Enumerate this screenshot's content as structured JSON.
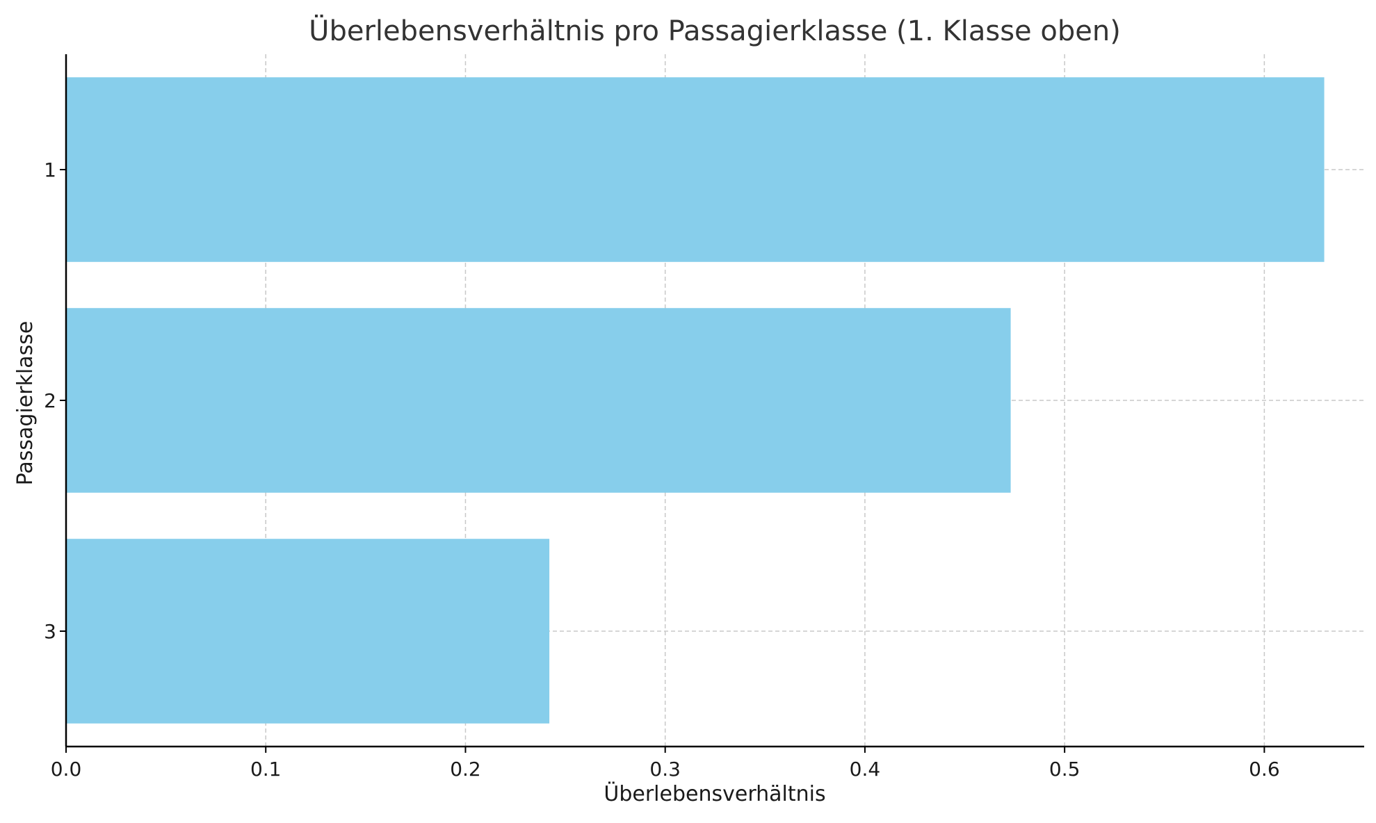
{
  "chart_data": {
    "type": "bar",
    "orientation": "horizontal",
    "title": "Überlebensverhältnis pro Passagierklasse (1. Klasse oben)",
    "xlabel": "Überlebensverhältnis",
    "ylabel": "Passagierklasse",
    "categories": [
      "1",
      "2",
      "3"
    ],
    "values": [
      0.63,
      0.473,
      0.242
    ],
    "xlim": [
      0.0,
      0.65
    ],
    "xticks": [
      0.0,
      0.1,
      0.2,
      0.3,
      0.4,
      0.5,
      0.6
    ],
    "xtick_labels": [
      "0.0",
      "0.1",
      "0.2",
      "0.3",
      "0.4",
      "0.5",
      "0.6"
    ],
    "grid": true,
    "bar_color": "#87CEEB"
  }
}
